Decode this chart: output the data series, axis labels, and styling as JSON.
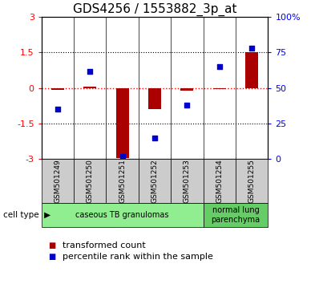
{
  "title": "GDS4256 / 1553882_3p_at",
  "samples": [
    "GSM501249",
    "GSM501250",
    "GSM501251",
    "GSM501252",
    "GSM501253",
    "GSM501254",
    "GSM501255"
  ],
  "transformed_count": [
    -0.07,
    0.05,
    -2.95,
    -0.9,
    -0.12,
    -0.05,
    1.5
  ],
  "percentile_rank": [
    35,
    62,
    2,
    15,
    38,
    65,
    78
  ],
  "ylim_left": [
    -3,
    3
  ],
  "ylim_right": [
    0,
    100
  ],
  "left_yticks": [
    -3,
    -1.5,
    0,
    1.5,
    3
  ],
  "right_yticks": [
    0,
    25,
    50,
    75,
    100
  ],
  "right_yticklabels": [
    "0",
    "25",
    "50",
    "75",
    "100%"
  ],
  "bar_color": "#AA0000",
  "dot_color": "#0000CC",
  "sample_box_color": "#cccccc",
  "cell_type_colors": [
    "#90EE90",
    "#66CC66"
  ],
  "cell_type_labels": [
    "caseous TB granulomas",
    "normal lung\nparenchyma"
  ],
  "cell_type_n_samples": [
    5,
    2
  ],
  "cell_type_label": "cell type",
  "legend_items": [
    {
      "color": "#AA0000",
      "label": "transformed count"
    },
    {
      "color": "#0000CC",
      "label": "percentile rank within the sample"
    }
  ],
  "background_color": "#ffffff",
  "title_fontsize": 11,
  "tick_label_fontsize": 8,
  "axis_label_fontsize": 7,
  "legend_fontsize": 8
}
